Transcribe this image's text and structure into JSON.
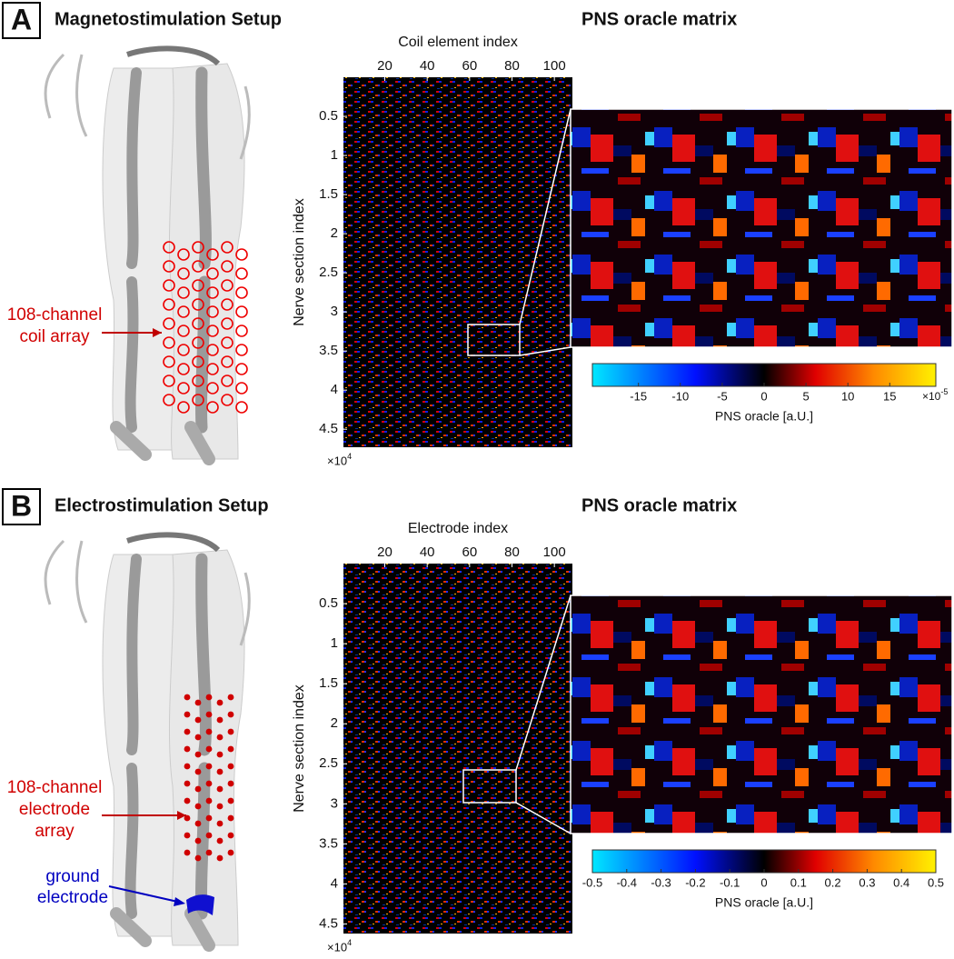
{
  "panels": [
    {
      "letter": "A",
      "title": "Magnetostimulation Setup",
      "array_label": [
        "108-channel",
        "coil array"
      ],
      "matrix_title": "PNS oracle matrix",
      "x_label": "Coil element index",
      "xlim": [
        0.5,
        108.5
      ],
      "xticks": [
        20,
        40,
        60,
        80,
        100
      ],
      "y_label": "Nerve section index",
      "ylim": [
        0,
        4.73
      ],
      "yticks": [
        0.5,
        1,
        1.5,
        2,
        2.5,
        3,
        3.5,
        4,
        4.5
      ],
      "y_multiplier": "×10",
      "y_exponent": "4",
      "colorbar": {
        "label": "PNS oracle [a.U.]",
        "lim": [
          -20.5,
          20.5
        ],
        "ticks": [
          -15,
          -10,
          -5,
          0,
          5,
          10,
          15
        ],
        "multiplier": "×10",
        "exponent": "-5"
      }
    },
    {
      "letter": "B",
      "title": "Electrostimulation Setup",
      "array_label": [
        "108-channel",
        "electrode",
        "array"
      ],
      "ground_label": [
        "ground",
        "electrode"
      ],
      "matrix_title": "PNS oracle matrix",
      "x_label": "Electrode index",
      "xlim": [
        0.5,
        108.5
      ],
      "xticks": [
        20,
        40,
        60,
        80,
        100
      ],
      "y_label": "Nerve section index",
      "ylim": [
        0,
        4.62
      ],
      "yticks": [
        0.5,
        1,
        1.5,
        2,
        2.5,
        3,
        3.5,
        4,
        4.5
      ],
      "y_multiplier": "×10",
      "y_exponent": "4",
      "colorbar": {
        "label": "PNS oracle [a.U.]",
        "lim": [
          -0.5,
          0.5
        ],
        "ticks": [
          -0.5,
          -0.4,
          -0.3,
          -0.2,
          -0.1,
          0,
          0.1,
          0.2,
          0.3,
          0.4,
          0.5
        ]
      }
    }
  ]
}
